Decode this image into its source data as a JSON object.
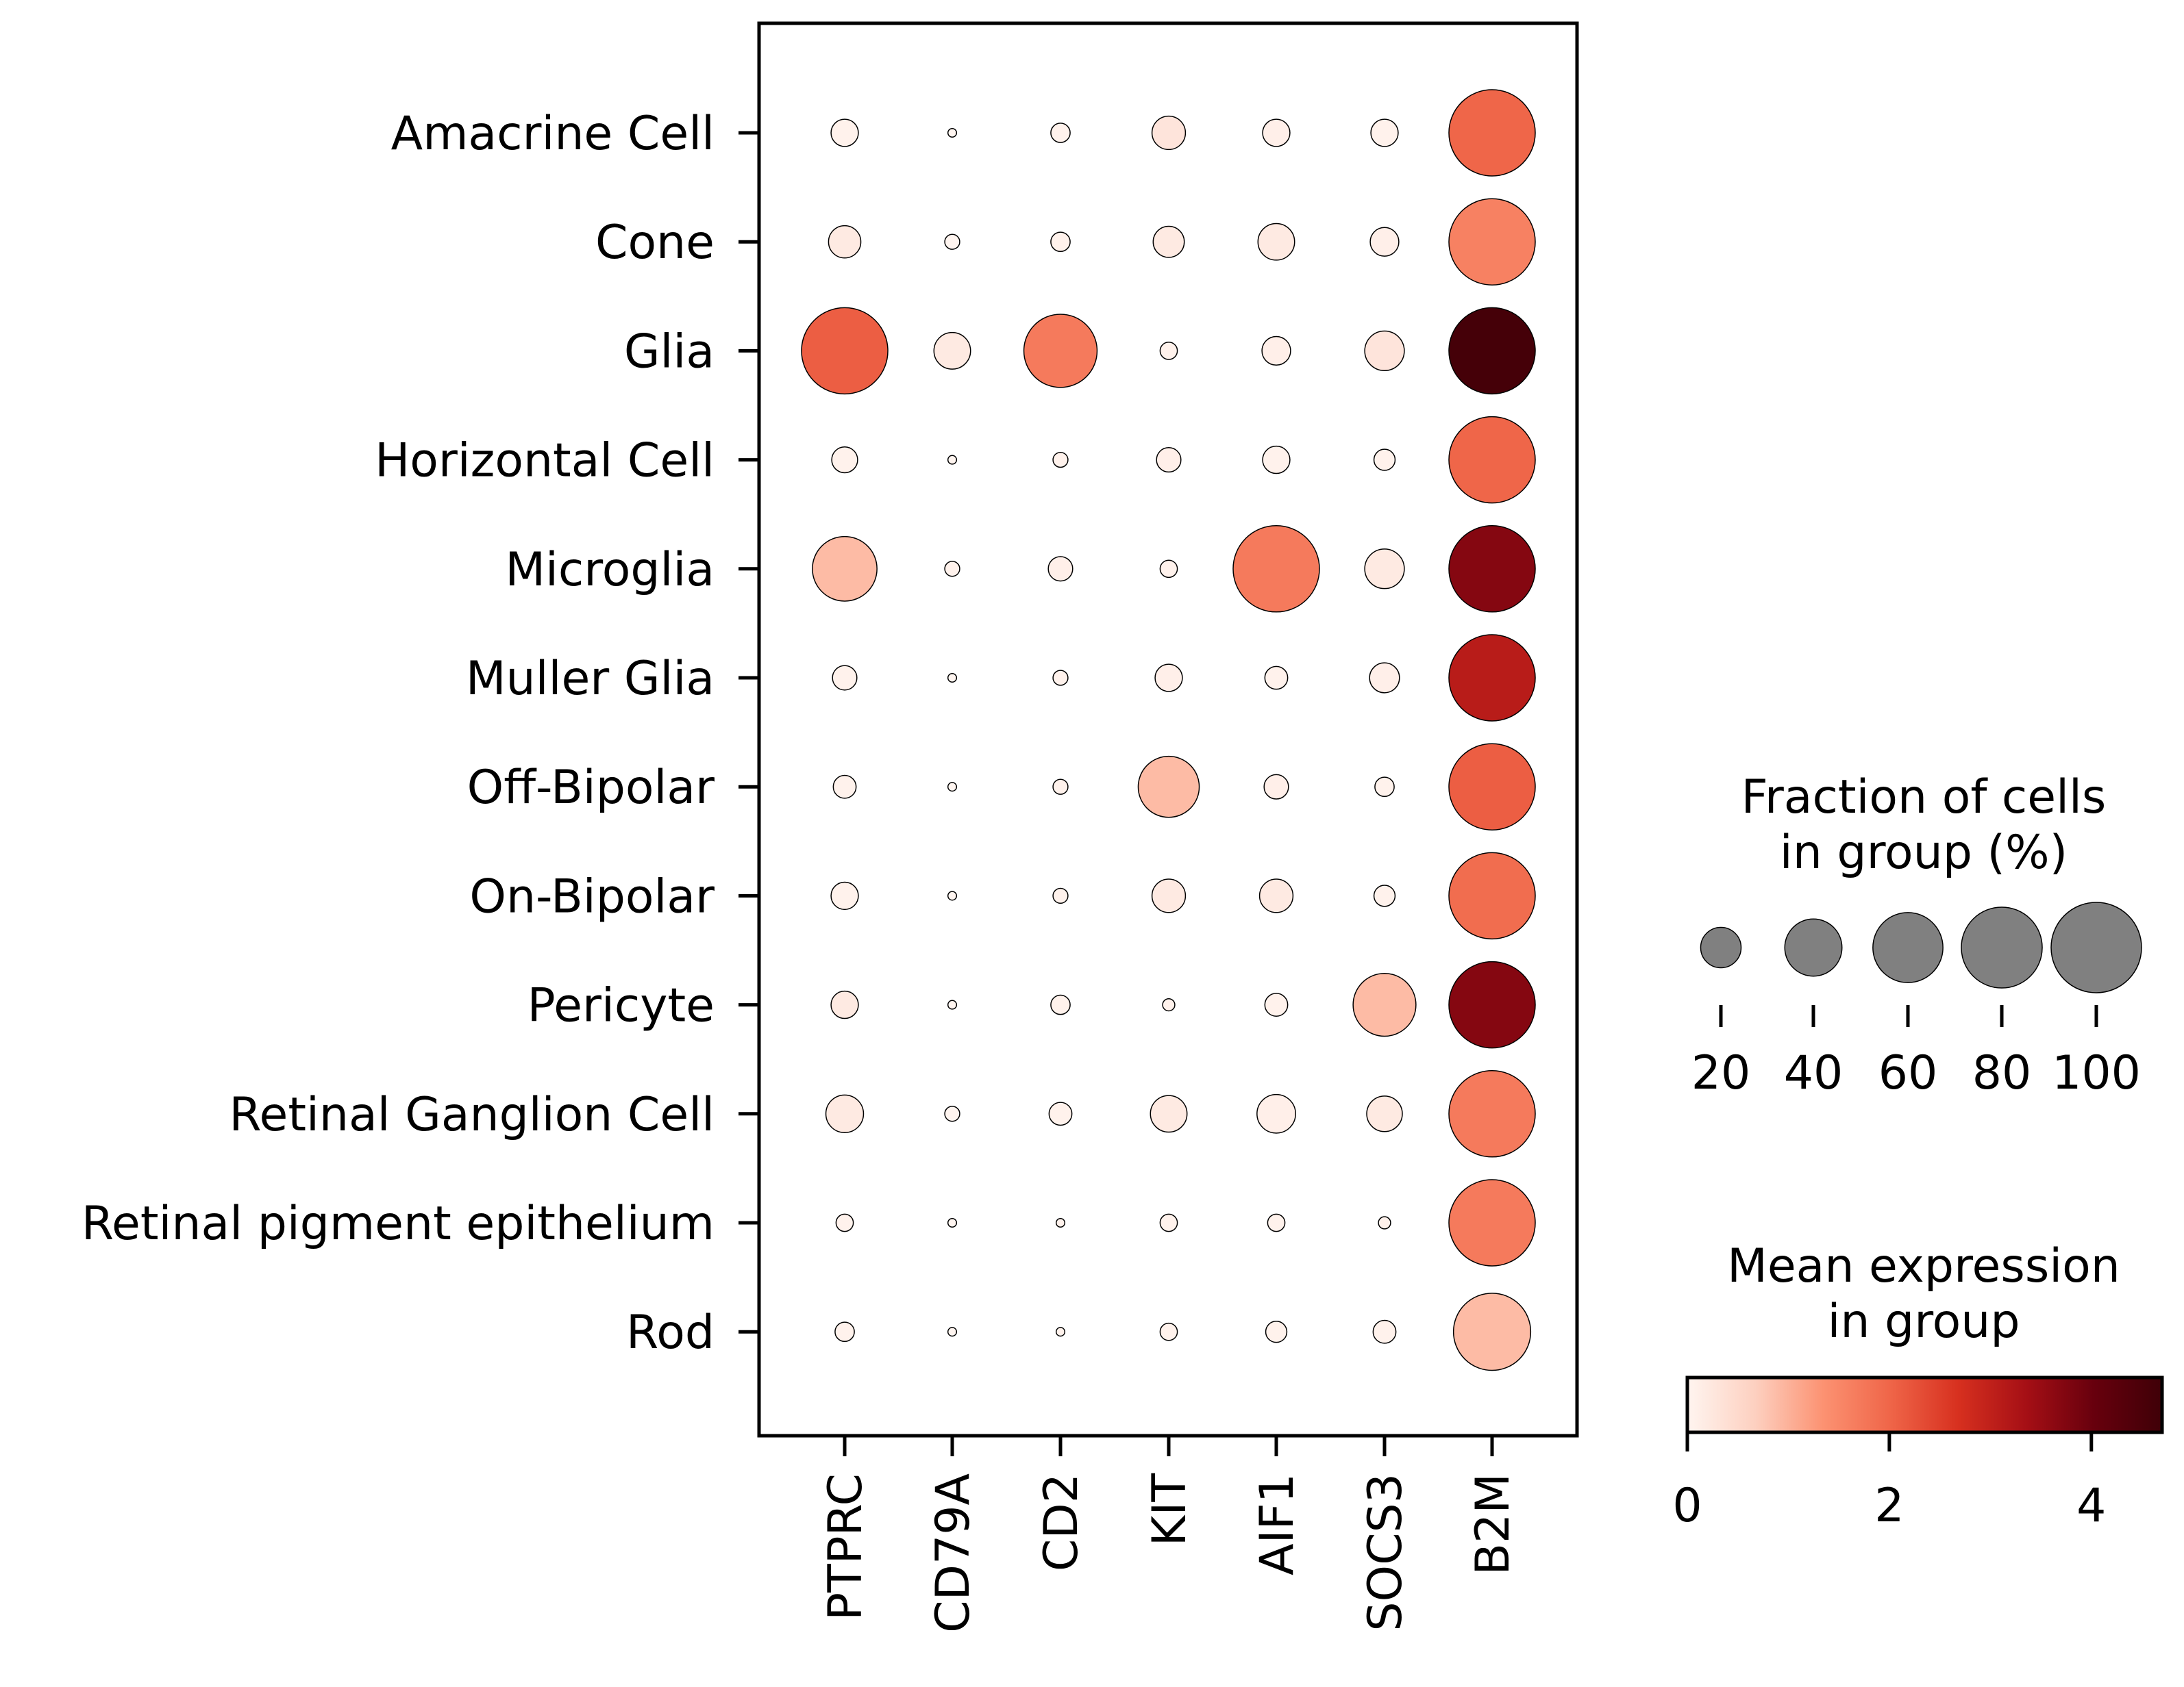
{
  "chart_data": {
    "type": "dotplot",
    "genes": [
      "PTPRC",
      "CD79A",
      "CD2",
      "KIT",
      "AIF1",
      "SOCS3",
      "B2M"
    ],
    "groups": [
      "Amacrine Cell",
      "Cone",
      "Glia",
      "Horizontal Cell",
      "Microglia",
      "Muller Glia",
      "Off-Bipolar",
      "On-Bipolar",
      "Pericyte",
      "Retinal Ganglion Cell",
      "Retinal pigment epithelium",
      "Rod"
    ],
    "fraction_pct": [
      [
        10,
        1,
        5,
        15,
        10,
        10,
        100
      ],
      [
        14,
        3,
        5,
        13,
        18,
        11,
        100
      ],
      [
        100,
        18,
        72,
        4,
        11,
        21,
        100
      ],
      [
        9,
        1,
        3,
        8,
        10,
        6,
        100
      ],
      [
        56,
        3,
        8,
        4,
        100,
        21,
        100
      ],
      [
        8,
        1,
        3,
        10,
        7,
        12,
        100
      ],
      [
        7,
        1,
        3,
        50,
        8,
        5,
        100
      ],
      [
        10,
        1,
        3,
        15,
        15,
        6,
        100
      ],
      [
        10,
        1,
        5,
        2,
        7,
        53,
        100
      ],
      [
        19,
        3,
        7,
        18,
        20,
        17,
        100
      ],
      [
        4,
        1,
        1,
        4,
        4,
        2,
        100
      ],
      [
        5,
        1,
        1,
        4,
        6,
        7,
        80
      ]
    ],
    "mean_expression": [
      [
        0.05,
        0.0,
        0.05,
        0.3,
        0.1,
        0.05,
        2.0
      ],
      [
        0.2,
        0.0,
        0.05,
        0.2,
        0.2,
        0.1,
        1.6
      ],
      [
        2.1,
        0.2,
        1.7,
        0.05,
        0.1,
        0.3,
        4.6
      ],
      [
        0.05,
        0.0,
        0.05,
        0.1,
        0.05,
        0.05,
        2.0
      ],
      [
        0.9,
        0.05,
        0.1,
        0.05,
        1.7,
        0.2,
        3.7
      ],
      [
        0.05,
        0.0,
        0.05,
        0.1,
        0.05,
        0.1,
        3.1
      ],
      [
        0.05,
        0.0,
        0.05,
        0.9,
        0.1,
        0.05,
        2.1
      ],
      [
        0.05,
        0.0,
        0.05,
        0.2,
        0.2,
        0.05,
        1.9
      ],
      [
        0.2,
        0.0,
        0.05,
        0.05,
        0.05,
        0.9,
        3.7
      ],
      [
        0.2,
        0.0,
        0.05,
        0.2,
        0.1,
        0.2,
        1.7
      ],
      [
        0.05,
        0.0,
        0.05,
        0.05,
        0.05,
        0.05,
        1.7
      ],
      [
        0.05,
        0.0,
        0.05,
        0.05,
        0.05,
        0.05,
        0.9
      ]
    ],
    "size_legend": {
      "title_lines": [
        "Fraction of cells",
        "in group (%)"
      ],
      "values": [
        20,
        40,
        60,
        80,
        100
      ],
      "labels": [
        "20",
        "40",
        "60",
        "80",
        "100"
      ],
      "dot_color": "#808080"
    },
    "color_legend": {
      "title_lines": [
        "Mean expression",
        "in group"
      ],
      "ticks": [
        0,
        2,
        4
      ],
      "tick_labels": [
        "0",
        "2",
        "4"
      ],
      "range": [
        0,
        4.7
      ],
      "colormap": "Reds",
      "stops": [
        "#fff5f0",
        "#fdd0c0",
        "#fc9272",
        "#ef6548",
        "#d7301f",
        "#a50f15",
        "#67000d",
        "#3f0007"
      ]
    }
  }
}
